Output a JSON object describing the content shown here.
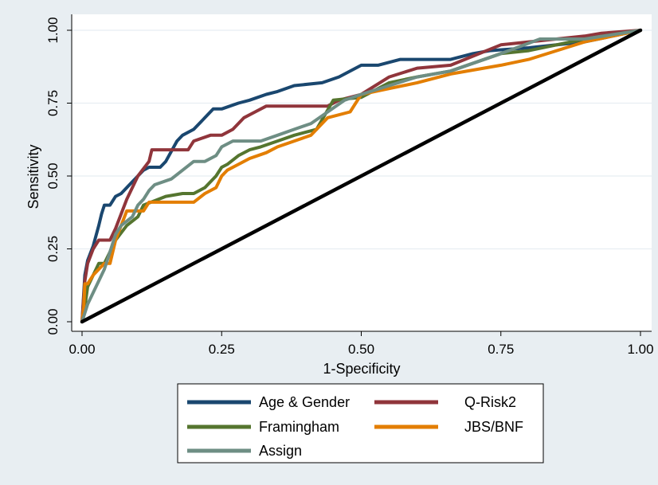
{
  "chart_data": {
    "type": "line",
    "title": "",
    "xlabel": "1-Specificity",
    "ylabel": "Sensitivity",
    "xlim": [
      0,
      1
    ],
    "ylim": [
      0,
      1
    ],
    "x_ticks": [
      "0.00",
      "0.25",
      "0.50",
      "0.75",
      "1.00"
    ],
    "y_ticks": [
      "0.00",
      "0.25",
      "0.50",
      "0.75",
      "1.00"
    ],
    "x_tick_values": [
      0,
      0.25,
      0.5,
      0.75,
      1
    ],
    "y_tick_values": [
      0,
      0.25,
      0.5,
      0.75,
      1
    ],
    "grid": "horizontal",
    "legend_position": "bottom",
    "reference_line": {
      "x": [
        0,
        1
      ],
      "y": [
        0,
        1
      ],
      "color": "#000000"
    },
    "series": [
      {
        "name": "Age & Gender",
        "color": "#1a476f",
        "x": [
          0,
          0.005,
          0.01,
          0.02,
          0.03,
          0.035,
          0.04,
          0.05,
          0.06,
          0.07,
          0.08,
          0.09,
          0.1,
          0.11,
          0.12,
          0.14,
          0.15,
          0.17,
          0.18,
          0.2,
          0.22,
          0.235,
          0.25,
          0.28,
          0.3,
          0.33,
          0.35,
          0.38,
          0.43,
          0.46,
          0.5,
          0.53,
          0.57,
          0.66,
          0.7,
          0.73,
          0.8,
          0.85,
          0.9,
          0.95,
          1.0
        ],
        "y": [
          0,
          0.16,
          0.21,
          0.26,
          0.33,
          0.37,
          0.4,
          0.4,
          0.43,
          0.44,
          0.46,
          0.48,
          0.5,
          0.52,
          0.53,
          0.53,
          0.55,
          0.62,
          0.64,
          0.66,
          0.7,
          0.73,
          0.73,
          0.75,
          0.76,
          0.78,
          0.79,
          0.81,
          0.82,
          0.84,
          0.88,
          0.88,
          0.9,
          0.9,
          0.92,
          0.93,
          0.94,
          0.95,
          0.96,
          0.98,
          1.0
        ]
      },
      {
        "name": "Q-Risk2",
        "color": "#90353b",
        "x": [
          0,
          0.005,
          0.01,
          0.02,
          0.03,
          0.05,
          0.06,
          0.08,
          0.1,
          0.12,
          0.125,
          0.15,
          0.19,
          0.2,
          0.23,
          0.25,
          0.27,
          0.29,
          0.31,
          0.33,
          0.38,
          0.44,
          0.46,
          0.5,
          0.55,
          0.6,
          0.66,
          0.75,
          0.8,
          0.9,
          0.93,
          1.0
        ],
        "y": [
          0,
          0.14,
          0.2,
          0.25,
          0.28,
          0.28,
          0.32,
          0.42,
          0.5,
          0.55,
          0.59,
          0.59,
          0.59,
          0.62,
          0.64,
          0.64,
          0.66,
          0.7,
          0.72,
          0.74,
          0.74,
          0.74,
          0.76,
          0.78,
          0.84,
          0.87,
          0.88,
          0.95,
          0.96,
          0.98,
          0.99,
          1.0
        ]
      },
      {
        "name": "Framingham",
        "color": "#55752f",
        "x": [
          0,
          0.005,
          0.01,
          0.03,
          0.04,
          0.05,
          0.06,
          0.08,
          0.1,
          0.11,
          0.15,
          0.18,
          0.2,
          0.22,
          0.24,
          0.25,
          0.26,
          0.28,
          0.3,
          0.32,
          0.35,
          0.38,
          0.42,
          0.45,
          0.5,
          0.55,
          0.6,
          0.66,
          0.75,
          0.8,
          0.9,
          1.0
        ],
        "y": [
          0,
          0.05,
          0.12,
          0.2,
          0.2,
          0.24,
          0.28,
          0.33,
          0.36,
          0.4,
          0.43,
          0.44,
          0.44,
          0.46,
          0.5,
          0.53,
          0.54,
          0.57,
          0.59,
          0.6,
          0.62,
          0.64,
          0.66,
          0.76,
          0.77,
          0.82,
          0.84,
          0.86,
          0.92,
          0.93,
          0.97,
          1.0
        ]
      },
      {
        "name": "JBS/BNF",
        "color": "#e37e00",
        "x": [
          0,
          0.003,
          0.005,
          0.01,
          0.02,
          0.03,
          0.04,
          0.05,
          0.06,
          0.07,
          0.08,
          0.09,
          0.11,
          0.12,
          0.14,
          0.2,
          0.22,
          0.24,
          0.25,
          0.26,
          0.28,
          0.3,
          0.33,
          0.35,
          0.38,
          0.41,
          0.44,
          0.48,
          0.5,
          0.55,
          0.6,
          0.66,
          0.75,
          0.8,
          0.9,
          1.0
        ],
        "y": [
          0,
          0.05,
          0.13,
          0.13,
          0.16,
          0.18,
          0.2,
          0.2,
          0.28,
          0.33,
          0.38,
          0.38,
          0.38,
          0.41,
          0.41,
          0.41,
          0.44,
          0.46,
          0.5,
          0.52,
          0.54,
          0.56,
          0.58,
          0.6,
          0.62,
          0.64,
          0.7,
          0.72,
          0.78,
          0.8,
          0.82,
          0.85,
          0.88,
          0.9,
          0.96,
          1.0
        ]
      },
      {
        "name": "Assign",
        "color": "#6e8e84",
        "x": [
          0,
          0.005,
          0.01,
          0.02,
          0.03,
          0.04,
          0.05,
          0.06,
          0.07,
          0.09,
          0.1,
          0.11,
          0.12,
          0.13,
          0.16,
          0.18,
          0.2,
          0.22,
          0.24,
          0.25,
          0.27,
          0.29,
          0.32,
          0.35,
          0.38,
          0.41,
          0.44,
          0.47,
          0.5,
          0.55,
          0.6,
          0.66,
          0.75,
          0.82,
          0.9,
          1.0
        ],
        "y": [
          0,
          0.03,
          0.06,
          0.1,
          0.14,
          0.18,
          0.24,
          0.3,
          0.33,
          0.36,
          0.4,
          0.42,
          0.45,
          0.47,
          0.49,
          0.52,
          0.55,
          0.55,
          0.57,
          0.6,
          0.62,
          0.62,
          0.62,
          0.64,
          0.66,
          0.68,
          0.72,
          0.76,
          0.78,
          0.81,
          0.84,
          0.86,
          0.92,
          0.97,
          0.97,
          1.0
        ]
      }
    ]
  }
}
